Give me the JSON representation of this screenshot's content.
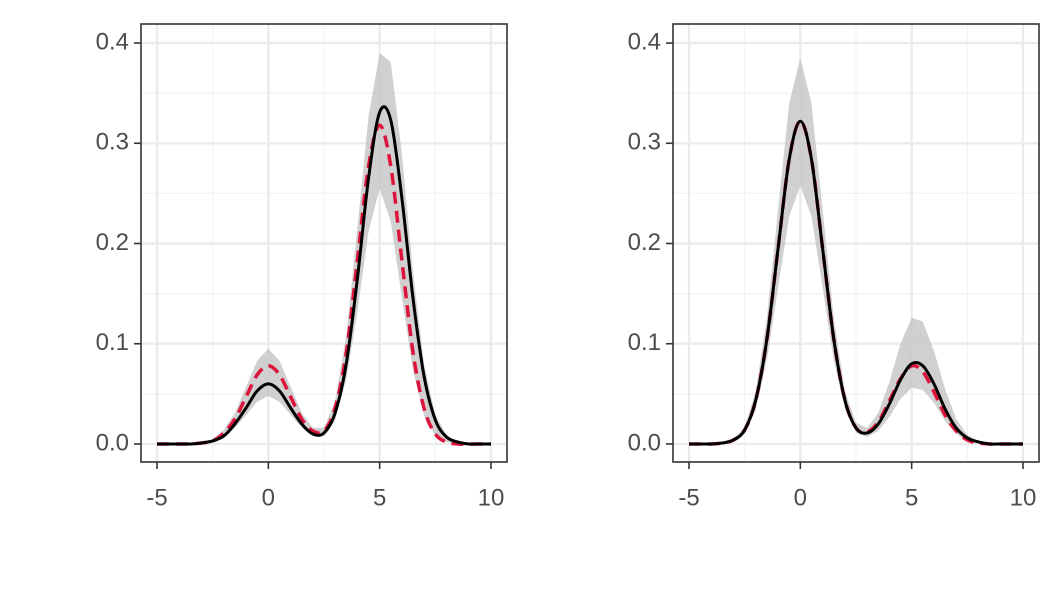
{
  "chart_data": [
    {
      "type": "line",
      "x": [
        -5,
        -4.5,
        -4,
        -3.5,
        -3,
        -2.5,
        -2,
        -1.5,
        -1,
        -0.5,
        0,
        0.5,
        1,
        1.5,
        2,
        2.5,
        3,
        3.5,
        4,
        4.5,
        5,
        5.5,
        6,
        6.5,
        7,
        7.5,
        8,
        8.5,
        9,
        9.5,
        10
      ],
      "band": {
        "color": "#c8c8c8",
        "lower": [
          0,
          0,
          0,
          0,
          0,
          0.002,
          0.006,
          0.016,
          0.029,
          0.042,
          0.048,
          0.042,
          0.029,
          0.016,
          0.008,
          0.008,
          0.024,
          0.064,
          0.132,
          0.212,
          0.255,
          0.222,
          0.146,
          0.073,
          0.028,
          0.008,
          0.002,
          0,
          0,
          0,
          0
        ],
        "upper": [
          0,
          0,
          0,
          0,
          0.002,
          0.005,
          0.014,
          0.031,
          0.057,
          0.083,
          0.095,
          0.083,
          0.057,
          0.031,
          0.016,
          0.016,
          0.043,
          0.108,
          0.216,
          0.327,
          0.39,
          0.381,
          0.289,
          0.171,
          0.079,
          0.029,
          0.009,
          0.002,
          0,
          0,
          0
        ]
      },
      "series": [
        {
          "color": "#dc143c",
          "dashed": true,
          "values": [
            0,
            0,
            0,
            0,
            0.001,
            0.003,
            0.011,
            0.025,
            0.047,
            0.069,
            0.078,
            0.069,
            0.047,
            0.025,
            0.013,
            0.013,
            0.036,
            0.091,
            0.183,
            0.277,
            0.318,
            0.277,
            0.183,
            0.091,
            0.035,
            0.01,
            0.002,
            0,
            0,
            0,
            0
          ]
        },
        {
          "color": "#000000",
          "dashed": false,
          "values": [
            0,
            0,
            0,
            0,
            0.001,
            0.003,
            0.008,
            0.02,
            0.036,
            0.053,
            0.06,
            0.053,
            0.036,
            0.02,
            0.01,
            0.011,
            0.031,
            0.08,
            0.165,
            0.265,
            0.331,
            0.323,
            0.245,
            0.145,
            0.067,
            0.024,
            0.007,
            0.002,
            0,
            0,
            0
          ]
        }
      ],
      "xlim": [
        -5.72,
        10.72
      ],
      "ylim": [
        -0.018,
        0.419
      ],
      "xticks": [
        -5,
        0,
        5,
        10
      ],
      "yticks": [
        {
          "value": 0,
          "label": "0.0"
        },
        0.1,
        0.2,
        0.3,
        0.4
      ],
      "grid": true
    },
    {
      "type": "line",
      "x": [
        -5,
        -4.5,
        -4,
        -3.5,
        -3,
        -2.5,
        -2,
        -1.5,
        -1,
        -0.5,
        0,
        0.5,
        1,
        1.5,
        2,
        2.5,
        3,
        3.5,
        4,
        4.5,
        5,
        5.5,
        6,
        6.5,
        7,
        7.5,
        8,
        8.5,
        9,
        9.5,
        10
      ],
      "band": {
        "color": "#c8c8c8",
        "lower": [
          0,
          0,
          0,
          0,
          0.003,
          0.011,
          0.035,
          0.084,
          0.156,
          0.227,
          0.258,
          0.227,
          0.156,
          0.084,
          0.035,
          0.011,
          0.007,
          0.013,
          0.027,
          0.045,
          0.056,
          0.054,
          0.041,
          0.023,
          0.01,
          0.003,
          0.001,
          0,
          0,
          0,
          0
        ],
        "upper": [
          0,
          0,
          0,
          0.001,
          0.005,
          0.017,
          0.053,
          0.126,
          0.234,
          0.34,
          0.385,
          0.34,
          0.234,
          0.126,
          0.053,
          0.021,
          0.016,
          0.031,
          0.062,
          0.1,
          0.126,
          0.122,
          0.093,
          0.055,
          0.025,
          0.009,
          0.003,
          0,
          0,
          0,
          0
        ]
      },
      "series": [
        {
          "color": "#dc143c",
          "dashed": true,
          "values": [
            0,
            0,
            0,
            0.001,
            0.004,
            0.014,
            0.044,
            0.105,
            0.195,
            0.284,
            0.322,
            0.284,
            0.195,
            0.105,
            0.044,
            0.016,
            0.012,
            0.022,
            0.043,
            0.065,
            0.078,
            0.072,
            0.052,
            0.029,
            0.013,
            0.004,
            0.001,
            0,
            0,
            0,
            0
          ]
        },
        {
          "color": "#000000",
          "dashed": false,
          "values": [
            0,
            0,
            0,
            0.001,
            0.004,
            0.014,
            0.044,
            0.105,
            0.195,
            0.284,
            0.322,
            0.284,
            0.195,
            0.105,
            0.044,
            0.016,
            0.011,
            0.02,
            0.04,
            0.064,
            0.08,
            0.078,
            0.06,
            0.035,
            0.016,
            0.006,
            0.002,
            0,
            0,
            0,
            0
          ]
        }
      ],
      "xlim": [
        -5.72,
        10.72
      ],
      "ylim": [
        -0.018,
        0.419
      ],
      "xticks": [
        -5,
        0,
        5,
        10
      ],
      "yticks": [
        {
          "value": 0,
          "label": "0.0"
        },
        0.1,
        0.2,
        0.3,
        0.4
      ],
      "grid": true
    }
  ]
}
